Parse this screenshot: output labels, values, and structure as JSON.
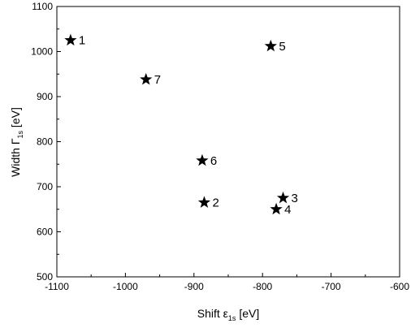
{
  "chart_data": {
    "type": "scatter",
    "marker": "star",
    "marker_color": "#000000",
    "grid": false,
    "xlabel": {
      "main": "Shift ε",
      "sub": "1s",
      "unit": " [eV]"
    },
    "ylabel": {
      "main": "Width Γ",
      "sub": "1s",
      "unit": " [eV]"
    },
    "xlim": [
      -1100,
      -600
    ],
    "ylim": [
      500,
      1100
    ],
    "x_ticks": [
      "-1100",
      "-1000",
      "-900",
      "-800",
      "-700",
      "-600"
    ],
    "y_ticks": [
      "500",
      "600",
      "700",
      "800",
      "900",
      "1000",
      "1100"
    ],
    "points": [
      {
        "label": "1",
        "x": -1080,
        "y": 1025
      },
      {
        "label": "2",
        "x": -885,
        "y": 665
      },
      {
        "label": "3",
        "x": -770,
        "y": 675
      },
      {
        "label": "4",
        "x": -780,
        "y": 650
      },
      {
        "label": "5",
        "x": -788,
        "y": 1012
      },
      {
        "label": "6",
        "x": -888,
        "y": 758
      },
      {
        "label": "7",
        "x": -970,
        "y": 938
      }
    ]
  }
}
